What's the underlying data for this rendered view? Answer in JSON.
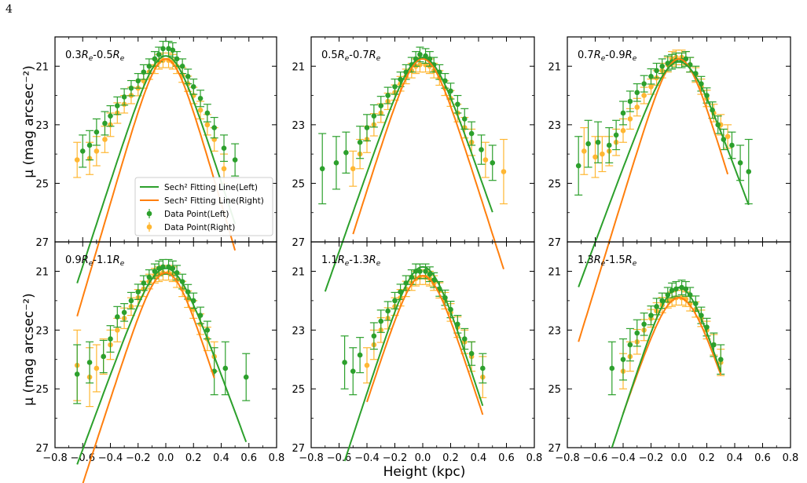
{
  "page_number": "4",
  "figure": {
    "ylabel": "μ (mag arcsec⁻²)",
    "xlabel": "Height (kpc)"
  },
  "legend": {
    "placement": "lower-right of first panel",
    "entries": [
      {
        "label": "Sech² Fitting Line(Left)",
        "kind": "line",
        "color": "#2ca02c"
      },
      {
        "label": "Sech² Fitting Line(Right)",
        "kind": "line",
        "color": "#ff7f0e"
      },
      {
        "label": "Data Point(Left)",
        "kind": "errorbar",
        "color": "#2ca02c"
      },
      {
        "label": "Data Point(Right)",
        "kind": "errorbar",
        "color": "#ffb733"
      }
    ]
  },
  "colors": {
    "left_line": "#2ca02c",
    "right_line": "#ff7f0e",
    "left_points": "#2ca02c",
    "right_points": "#ffb733"
  },
  "chart_data": [
    {
      "type": "scatter",
      "panel_label": "0.3R_e-0.5R_e",
      "label_parts": [
        "0.3",
        "-0.5"
      ],
      "xlim": [
        -0.8,
        0.8
      ],
      "ylim": [
        27,
        20
      ],
      "xticks": [
        "−0.8",
        "−0.6",
        "−0.4",
        "−0.2",
        "0.0",
        "0.2",
        "0.4",
        "0.6",
        "0.8"
      ],
      "yticks": [
        "21",
        "23",
        "25",
        "27"
      ],
      "fit_left": {
        "peak": 20.65,
        "h": 0.15,
        "xmin": -0.64,
        "xmax": 0.5
      },
      "fit_right": {
        "peak": 20.75,
        "h": 0.135,
        "xmin": -0.64,
        "xmax": 0.5
      },
      "left_points": {
        "x": [
          -0.6,
          -0.55,
          -0.5,
          -0.44,
          -0.4,
          -0.35,
          -0.3,
          -0.25,
          -0.2,
          -0.16,
          -0.12,
          -0.08,
          -0.05,
          -0.02,
          0.02,
          0.05,
          0.08,
          0.12,
          0.16,
          0.2,
          0.25,
          0.3,
          0.35,
          0.42,
          0.5
        ],
        "y": [
          23.9,
          23.7,
          23.25,
          22.95,
          22.7,
          22.35,
          22.05,
          21.75,
          21.5,
          21.2,
          21.0,
          20.75,
          20.6,
          20.4,
          20.4,
          20.45,
          20.75,
          21.0,
          21.35,
          21.7,
          22.1,
          22.6,
          23.1,
          23.8,
          24.2
        ],
        "err": [
          0.55,
          0.5,
          0.45,
          0.4,
          0.35,
          0.3,
          0.28,
          0.26,
          0.25,
          0.25,
          0.25,
          0.25,
          0.25,
          0.25,
          0.25,
          0.25,
          0.25,
          0.25,
          0.25,
          0.26,
          0.28,
          0.3,
          0.35,
          0.45,
          0.55
        ]
      },
      "right_points": {
        "x": [
          -0.64,
          -0.55,
          -0.5,
          -0.44,
          -0.4,
          -0.35,
          -0.3,
          -0.25,
          -0.2,
          -0.16,
          -0.12,
          -0.08,
          -0.05,
          -0.02,
          0.02,
          0.05,
          0.08,
          0.12,
          0.16,
          0.2,
          0.25,
          0.3,
          0.35,
          0.42
        ],
        "y": [
          24.2,
          24.15,
          23.9,
          23.5,
          23.0,
          22.6,
          22.3,
          22.0,
          21.75,
          21.5,
          21.2,
          21.0,
          20.85,
          20.8,
          20.8,
          20.85,
          21.0,
          21.3,
          21.6,
          22.0,
          22.5,
          23.0,
          23.5,
          24.5
        ],
        "err": [
          0.6,
          0.55,
          0.5,
          0.45,
          0.4,
          0.35,
          0.3,
          0.28,
          0.26,
          0.25,
          0.25,
          0.25,
          0.25,
          0.25,
          0.25,
          0.25,
          0.25,
          0.25,
          0.26,
          0.28,
          0.3,
          0.35,
          0.4,
          0.5
        ]
      }
    },
    {
      "type": "scatter",
      "panel_label": "0.5R_e-0.7R_e",
      "label_parts": [
        "0.5",
        "-0.7"
      ],
      "xlim": [
        -0.8,
        0.8
      ],
      "ylim": [
        27,
        20
      ],
      "xticks": [
        "−0.8",
        "−0.6",
        "−0.4",
        "−0.2",
        "0.0",
        "0.2",
        "0.4",
        "0.6",
        "0.8"
      ],
      "yticks": [
        "21",
        "23",
        "25",
        "27"
      ],
      "fit_left": {
        "peak": 20.7,
        "h": 0.16,
        "xmin": -0.7,
        "xmax": 0.5
      },
      "fit_right": {
        "peak": 20.75,
        "h": 0.145,
        "xmin": -0.5,
        "xmax": 0.58
      },
      "left_points": {
        "x": [
          -0.72,
          -0.62,
          -0.55,
          -0.45,
          -0.4,
          -0.35,
          -0.3,
          -0.25,
          -0.2,
          -0.16,
          -0.12,
          -0.08,
          -0.05,
          -0.02,
          0.02,
          0.05,
          0.08,
          0.12,
          0.16,
          0.2,
          0.25,
          0.3,
          0.35,
          0.42,
          0.5
        ],
        "y": [
          24.5,
          24.3,
          23.95,
          23.6,
          23.1,
          22.7,
          22.35,
          22.0,
          21.7,
          21.45,
          21.2,
          20.95,
          20.75,
          20.6,
          20.65,
          20.75,
          20.95,
          21.2,
          21.5,
          21.85,
          22.3,
          22.8,
          23.3,
          23.85,
          24.3
        ],
        "err": [
          1.2,
          0.9,
          0.7,
          0.55,
          0.45,
          0.38,
          0.32,
          0.28,
          0.26,
          0.25,
          0.25,
          0.25,
          0.25,
          0.25,
          0.25,
          0.25,
          0.25,
          0.25,
          0.25,
          0.27,
          0.3,
          0.35,
          0.4,
          0.5,
          0.6
        ]
      },
      "right_points": {
        "x": [
          -0.5,
          -0.45,
          -0.4,
          -0.35,
          -0.3,
          -0.25,
          -0.2,
          -0.16,
          -0.12,
          -0.08,
          -0.05,
          -0.02,
          0.02,
          0.05,
          0.08,
          0.12,
          0.16,
          0.2,
          0.25,
          0.3,
          0.35,
          0.45,
          0.58
        ],
        "y": [
          24.5,
          24.0,
          23.5,
          23.0,
          22.6,
          22.2,
          21.9,
          21.6,
          21.35,
          21.15,
          21.0,
          20.95,
          20.95,
          21.0,
          21.15,
          21.4,
          21.75,
          22.1,
          22.6,
          23.1,
          23.6,
          24.2,
          24.6
        ],
        "err": [
          0.6,
          0.5,
          0.45,
          0.38,
          0.32,
          0.28,
          0.26,
          0.25,
          0.25,
          0.25,
          0.25,
          0.25,
          0.25,
          0.25,
          0.25,
          0.25,
          0.25,
          0.27,
          0.3,
          0.35,
          0.45,
          0.6,
          1.1
        ]
      }
    },
    {
      "type": "scatter",
      "panel_label": "0.7R_e-0.9R_e",
      "label_parts": [
        "0.7",
        "-0.9"
      ],
      "xlim": [
        -0.8,
        0.8
      ],
      "ylim": [
        27,
        20
      ],
      "xticks": [
        "−0.8",
        "−0.6",
        "−0.4",
        "−0.2",
        "0.0",
        "0.2",
        "0.4",
        "0.6",
        "0.8"
      ],
      "yticks": [
        "21",
        "23",
        "25",
        "27"
      ],
      "fit_left": {
        "peak": 20.85,
        "h": 0.17,
        "xmin": -0.72,
        "xmax": 0.5
      },
      "fit_right": {
        "peak": 20.75,
        "h": 0.14,
        "xmin": -0.72,
        "xmax": 0.35
      },
      "left_points": {
        "x": [
          -0.72,
          -0.65,
          -0.58,
          -0.5,
          -0.45,
          -0.4,
          -0.35,
          -0.3,
          -0.25,
          -0.2,
          -0.16,
          -0.12,
          -0.08,
          -0.05,
          -0.02,
          0.02,
          0.05,
          0.08,
          0.12,
          0.16,
          0.2,
          0.24,
          0.28,
          0.32,
          0.38,
          0.44,
          0.5
        ],
        "y": [
          24.4,
          23.65,
          23.6,
          23.7,
          23.35,
          22.6,
          22.2,
          21.9,
          21.6,
          21.35,
          21.15,
          21.0,
          20.9,
          20.85,
          20.8,
          20.8,
          20.75,
          20.95,
          21.25,
          21.6,
          22.0,
          22.5,
          23.0,
          23.5,
          23.7,
          24.3,
          24.6
        ],
        "err": [
          1.0,
          0.8,
          0.7,
          0.6,
          0.5,
          0.4,
          0.35,
          0.3,
          0.28,
          0.26,
          0.25,
          0.25,
          0.25,
          0.25,
          0.25,
          0.25,
          0.25,
          0.25,
          0.25,
          0.25,
          0.26,
          0.28,
          0.3,
          0.35,
          0.45,
          0.6,
          1.1
        ]
      },
      "right_points": {
        "x": [
          -0.68,
          -0.6,
          -0.55,
          -0.5,
          -0.45,
          -0.4,
          -0.35,
          -0.3,
          -0.25,
          -0.2,
          -0.16,
          -0.12,
          -0.08,
          -0.05,
          -0.02,
          0.02,
          0.05,
          0.08,
          0.12,
          0.16,
          0.2,
          0.25,
          0.3,
          0.35
        ],
        "y": [
          23.9,
          24.1,
          24.0,
          23.9,
          23.6,
          23.2,
          22.8,
          22.4,
          22.0,
          21.7,
          21.4,
          21.15,
          20.95,
          20.75,
          20.7,
          20.7,
          20.75,
          20.95,
          21.3,
          21.7,
          22.1,
          22.6,
          23.0,
          23.4
        ],
        "err": [
          0.8,
          0.7,
          0.6,
          0.5,
          0.45,
          0.4,
          0.35,
          0.3,
          0.28,
          0.26,
          0.25,
          0.25,
          0.25,
          0.25,
          0.25,
          0.25,
          0.25,
          0.25,
          0.25,
          0.26,
          0.28,
          0.3,
          0.35,
          0.4
        ]
      }
    },
    {
      "type": "scatter",
      "panel_label": "0.9R_e-1.1R_e",
      "label_parts": [
        "0.9",
        "-1.1"
      ],
      "xlim": [
        -0.8,
        0.8
      ],
      "ylim": [
        27,
        20
      ],
      "xticks": [
        "−0.8",
        "−0.6",
        "−0.4",
        "−0.2",
        "0.0",
        "0.2",
        "0.4",
        "0.6",
        "0.8"
      ],
      "yticks": [
        "21",
        "23",
        "25",
        "27"
      ],
      "fit_left": {
        "peak": 20.9,
        "h": 0.17,
        "xmin": -0.64,
        "xmax": 0.58
      },
      "fit_right": {
        "peak": 21.05,
        "h": 0.15,
        "xmin": -0.64,
        "xmax": 0.35
      },
      "left_points": {
        "x": [
          -0.64,
          -0.55,
          -0.45,
          -0.4,
          -0.35,
          -0.3,
          -0.25,
          -0.2,
          -0.16,
          -0.12,
          -0.08,
          -0.05,
          -0.02,
          0.02,
          0.05,
          0.08,
          0.12,
          0.16,
          0.2,
          0.25,
          0.3,
          0.35,
          0.43,
          0.58
        ],
        "y": [
          24.5,
          24.1,
          23.9,
          23.3,
          22.55,
          22.4,
          22.0,
          21.7,
          21.4,
          21.2,
          21.0,
          20.9,
          20.85,
          20.85,
          20.9,
          21.05,
          21.35,
          21.7,
          22.0,
          22.5,
          23.0,
          24.4,
          24.3,
          24.6
        ],
        "err": [
          1.0,
          0.7,
          0.55,
          0.45,
          0.35,
          0.3,
          0.28,
          0.26,
          0.25,
          0.25,
          0.25,
          0.25,
          0.25,
          0.25,
          0.25,
          0.25,
          0.25,
          0.25,
          0.26,
          0.28,
          0.3,
          0.8,
          0.9,
          0.8
        ]
      },
      "right_points": {
        "x": [
          -0.64,
          -0.55,
          -0.5,
          -0.45,
          -0.4,
          -0.35,
          -0.3,
          -0.25,
          -0.2,
          -0.16,
          -0.12,
          -0.08,
          -0.05,
          -0.02,
          0.02,
          0.05,
          0.08,
          0.12,
          0.16,
          0.2,
          0.25,
          0.3,
          0.35
        ],
        "y": [
          24.2,
          24.6,
          24.3,
          23.9,
          23.5,
          23.0,
          22.6,
          22.2,
          21.9,
          21.6,
          21.35,
          21.15,
          21.1,
          21.05,
          21.05,
          21.1,
          21.3,
          21.6,
          21.95,
          22.3,
          22.8,
          23.3,
          23.9
        ],
        "err": [
          1.2,
          1.0,
          0.8,
          0.6,
          0.5,
          0.4,
          0.35,
          0.3,
          0.28,
          0.26,
          0.25,
          0.25,
          0.25,
          0.25,
          0.25,
          0.25,
          0.25,
          0.26,
          0.28,
          0.3,
          0.35,
          0.4,
          0.5
        ]
      }
    },
    {
      "type": "scatter",
      "panel_label": "1.1R_e-1.3R_e",
      "label_parts": [
        "1.1",
        "-1.3"
      ],
      "xlim": [
        -0.8,
        0.8
      ],
      "ylim": [
        27,
        20
      ],
      "xticks": [
        "−0.8",
        "−0.6",
        "−0.4",
        "−0.2",
        "0.0",
        "0.2",
        "0.4",
        "0.6",
        "0.8"
      ],
      "yticks": [
        "21",
        "23",
        "25",
        "27"
      ],
      "fit_left": {
        "peak": 20.85,
        "h": 0.15,
        "xmin": -0.56,
        "xmax": 0.43
      },
      "fit_right": {
        "peak": 21.15,
        "h": 0.15,
        "xmin": -0.4,
        "xmax": 0.43
      },
      "left_points": {
        "x": [
          -0.56,
          -0.5,
          -0.45,
          -0.35,
          -0.3,
          -0.25,
          -0.2,
          -0.16,
          -0.12,
          -0.08,
          -0.05,
          -0.02,
          0.02,
          0.05,
          0.08,
          0.12,
          0.16,
          0.2,
          0.25,
          0.3,
          0.35,
          0.43
        ],
        "y": [
          24.1,
          24.4,
          23.85,
          23.2,
          22.7,
          22.35,
          22.0,
          21.7,
          21.4,
          21.2,
          21.0,
          21.0,
          21.0,
          21.1,
          21.3,
          21.6,
          21.9,
          22.3,
          22.8,
          23.3,
          23.8,
          24.3
        ],
        "err": [
          0.9,
          0.8,
          0.6,
          0.45,
          0.38,
          0.32,
          0.28,
          0.26,
          0.25,
          0.25,
          0.25,
          0.25,
          0.25,
          0.25,
          0.25,
          0.25,
          0.26,
          0.28,
          0.3,
          0.35,
          0.4,
          0.5
        ]
      },
      "right_points": {
        "x": [
          -0.4,
          -0.35,
          -0.3,
          -0.25,
          -0.2,
          -0.16,
          -0.12,
          -0.08,
          -0.05,
          -0.02,
          0.02,
          0.05,
          0.08,
          0.12,
          0.16,
          0.2,
          0.25,
          0.3,
          0.35,
          0.43
        ],
        "y": [
          24.2,
          23.5,
          23.0,
          22.6,
          22.2,
          21.9,
          21.6,
          21.4,
          21.25,
          21.2,
          21.2,
          21.25,
          21.4,
          21.65,
          22.0,
          22.4,
          22.9,
          23.4,
          23.9,
          24.6
        ],
        "err": [
          0.6,
          0.5,
          0.42,
          0.36,
          0.3,
          0.28,
          0.26,
          0.25,
          0.25,
          0.25,
          0.25,
          0.25,
          0.25,
          0.26,
          0.28,
          0.3,
          0.35,
          0.4,
          0.5,
          0.7
        ]
      }
    },
    {
      "type": "scatter",
      "panel_label": "1.3R_e-1.5R_e",
      "label_parts": [
        "1.3",
        "-1.5"
      ],
      "xlim": [
        -0.8,
        0.8
      ],
      "ylim": [
        27,
        20
      ],
      "xticks": [
        "−0.8",
        "−0.6",
        "−0.4",
        "−0.2",
        "0.0",
        "0.2",
        "0.4",
        "0.6",
        "0.8"
      ],
      "yticks": [
        "21",
        "23",
        "25",
        "27"
      ],
      "fit_left": {
        "peak": 21.55,
        "h": 0.15,
        "xmin": -0.48,
        "xmax": 0.3
      },
      "fit_right": {
        "peak": 21.9,
        "h": 0.16,
        "xmin": -0.4,
        "xmax": 0.3
      },
      "left_points": {
        "x": [
          -0.48,
          -0.4,
          -0.35,
          -0.3,
          -0.25,
          -0.2,
          -0.16,
          -0.12,
          -0.08,
          -0.05,
          -0.02,
          0.02,
          0.05,
          0.08,
          0.12,
          0.16,
          0.2,
          0.25,
          0.3
        ],
        "y": [
          24.3,
          24.0,
          23.5,
          23.1,
          22.8,
          22.5,
          22.2,
          22.0,
          21.8,
          21.65,
          21.6,
          21.55,
          21.6,
          21.8,
          22.1,
          22.5,
          22.9,
          23.5,
          24.0
        ],
        "err": [
          0.9,
          0.7,
          0.55,
          0.45,
          0.38,
          0.32,
          0.28,
          0.26,
          0.25,
          0.25,
          0.25,
          0.25,
          0.25,
          0.25,
          0.26,
          0.28,
          0.3,
          0.4,
          0.5
        ]
      },
      "right_points": {
        "x": [
          -0.4,
          -0.35,
          -0.3,
          -0.25,
          -0.2,
          -0.16,
          -0.12,
          -0.08,
          -0.05,
          -0.02,
          0.02,
          0.05,
          0.08,
          0.12,
          0.16,
          0.2,
          0.25,
          0.3
        ],
        "y": [
          24.4,
          23.9,
          23.4,
          23.0,
          22.6,
          22.35,
          22.15,
          22.0,
          21.95,
          21.9,
          21.9,
          21.95,
          22.1,
          22.3,
          22.6,
          23.0,
          23.5,
          24.1
        ],
        "err": [
          0.6,
          0.5,
          0.42,
          0.36,
          0.3,
          0.28,
          0.26,
          0.25,
          0.25,
          0.25,
          0.25,
          0.25,
          0.25,
          0.26,
          0.28,
          0.3,
          0.35,
          0.45
        ]
      }
    }
  ]
}
